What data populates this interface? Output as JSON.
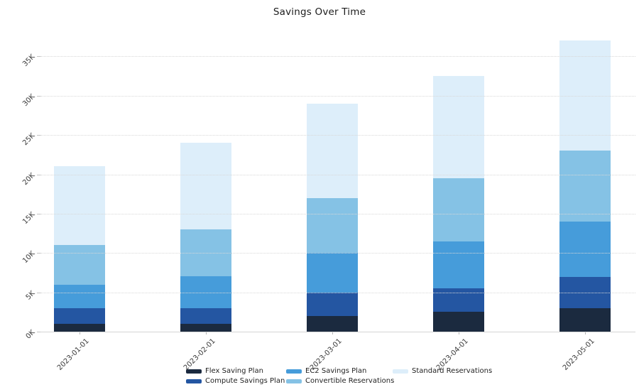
{
  "chart_data": {
    "type": "bar",
    "stacked": true,
    "title": "Savings Over Time",
    "categories": [
      "2023-01-01",
      "2023-02-01",
      "2023-03-01",
      "2023-04-01",
      "2023-05-01"
    ],
    "series": [
      {
        "name": "Flex Saving Plan",
        "color": "#1b2a3f",
        "values_k": [
          1,
          1,
          2,
          2.5,
          3
        ]
      },
      {
        "name": "Compute Savings Plan",
        "color": "#2456a2",
        "values_k": [
          2,
          2,
          3,
          3,
          4
        ]
      },
      {
        "name": "EC2 Savings Plan",
        "color": "#469cda",
        "values_k": [
          3,
          4,
          5,
          6,
          7
        ]
      },
      {
        "name": "Convertible Reservations",
        "color": "#85c2e5",
        "values_k": [
          5,
          6,
          7,
          8,
          9
        ]
      },
      {
        "name": "Standard Reservations",
        "color": "#ddeefa",
        "values_k": [
          10,
          11,
          12,
          13,
          14
        ]
      }
    ],
    "stack_totals_k": [
      21,
      24,
      29,
      32.5,
      37
    ],
    "y_axis": {
      "tick_labels": [
        "0K",
        "5K",
        "10K",
        "15K",
        "20K",
        "25K",
        "30K",
        "35K"
      ],
      "tick_values_k": [
        0,
        5,
        10,
        15,
        20,
        25,
        30,
        35
      ],
      "max_k": 38.1
    },
    "grid": "horizontal-dotted-over-bars",
    "legend": {
      "position": "bottom",
      "columns": [
        [
          "Flex Saving Plan",
          "Compute Savings Plan"
        ],
        [
          "EC2 Savings Plan",
          "Convertible Reservations"
        ],
        [
          "Standard Reservations"
        ]
      ]
    }
  }
}
